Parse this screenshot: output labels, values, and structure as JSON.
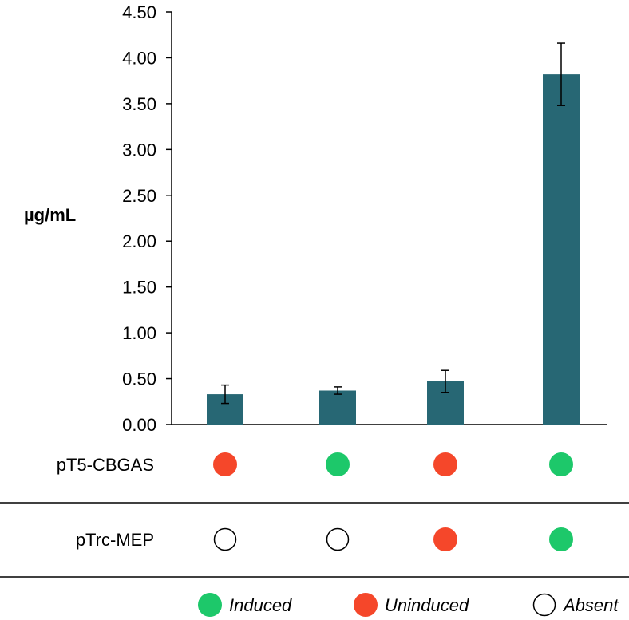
{
  "chart_data": {
    "type": "bar",
    "title": "",
    "xlabel": "",
    "ylabel": "µg/mL",
    "ylim": [
      0,
      4.5
    ],
    "yticks": [
      "0.00",
      "0.50",
      "1.00",
      "1.50",
      "2.00",
      "2.50",
      "3.00",
      "3.50",
      "4.00",
      "4.50"
    ],
    "grid": false,
    "legend_position": "bottom",
    "colors": {
      "bar": "#276774",
      "induced": "#1dc86a",
      "uninduced": "#f5472a",
      "absent": "#ffffff"
    },
    "series": [
      {
        "values": [
          0.33,
          0.37,
          0.47,
          3.82
        ],
        "errors": [
          0.1,
          0.04,
          0.12,
          0.34
        ]
      }
    ],
    "condition_rows": [
      {
        "label": "pT5-CBGAS",
        "states": [
          "uninduced",
          "induced",
          "uninduced",
          "induced"
        ]
      },
      {
        "label": "pTrc-MEP",
        "states": [
          "absent",
          "absent",
          "uninduced",
          "induced"
        ]
      }
    ],
    "legend": [
      {
        "state": "induced",
        "label": "Induced"
      },
      {
        "state": "uninduced",
        "label": "Uninduced"
      },
      {
        "state": "absent",
        "label": "Absent"
      }
    ]
  }
}
